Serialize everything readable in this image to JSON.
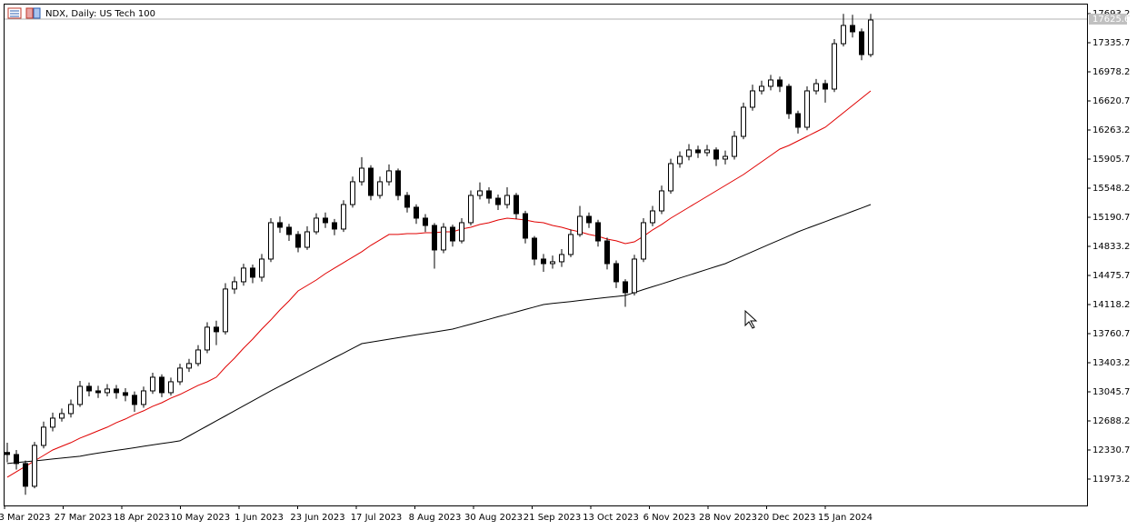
{
  "chart_data": {
    "type": "candlestick",
    "title": "NDX, Daily:  US Tech 100",
    "open": [
      12300,
      12275,
      12164,
      11885,
      12387,
      12611,
      12722,
      12778,
      12890,
      13113,
      13057,
      13035,
      13080,
      13035,
      13002,
      12890,
      13057,
      13225,
      13035,
      13169,
      13337,
      13393,
      13560,
      13840,
      13784,
      14309,
      14398,
      14566,
      14454,
      14677,
      15124,
      15068,
      14979,
      14822,
      15012,
      15180,
      15124,
      15046,
      15347,
      15627,
      15794,
      15459,
      15627,
      15761,
      15459,
      15314,
      15180,
      15090,
      14789,
      15068,
      14900,
      15124,
      15459,
      15515,
      15425,
      15347,
      15459,
      15235,
      14934,
      14677,
      14621,
      14644,
      14733,
      14979,
      15202,
      15124,
      14900,
      14621,
      14398,
      14264,
      14677,
      15124,
      15269,
      15515,
      15850,
      15939,
      16018,
      15984,
      16018,
      15906,
      15939,
      16185,
      16543,
      16744,
      16800,
      16878,
      16800,
      16464,
      16297,
      16744,
      16833,
      16766,
      17324,
      17548,
      17470,
      17190
    ],
    "high": [
      12420,
      12330,
      12200,
      12430,
      12680,
      12790,
      12840,
      12950,
      13180,
      13160,
      13120,
      13140,
      13130,
      13090,
      13050,
      13110,
      13280,
      13260,
      13220,
      13390,
      13450,
      13620,
      13900,
      13920,
      14380,
      14460,
      14620,
      14610,
      14740,
      15180,
      15200,
      15110,
      15020,
      15080,
      15240,
      15250,
      15170,
      15400,
      15690,
      15930,
      15830,
      15690,
      15840,
      15790,
      15500,
      15350,
      15230,
      15120,
      15120,
      15100,
      15180,
      15520,
      15620,
      15560,
      15470,
      15560,
      15490,
      15270,
      14960,
      14740,
      14720,
      14800,
      15040,
      15330,
      15250,
      15160,
      14940,
      14660,
      14430,
      14730,
      15180,
      15330,
      15580,
      15910,
      16000,
      16090,
      16070,
      16080,
      16050,
      16010,
      16250,
      16600,
      16820,
      16870,
      16940,
      16920,
      16830,
      16500,
      16800,
      16890,
      16880,
      17380,
      17690,
      17680,
      17510,
      17690
    ],
    "low": [
      12180,
      12090,
      11780,
      11860,
      12350,
      12560,
      12680,
      12730,
      12860,
      12990,
      12970,
      12990,
      12960,
      12930,
      12800,
      12850,
      13020,
      12980,
      13000,
      13130,
      13290,
      13360,
      13520,
      13620,
      13750,
      14250,
      14350,
      14380,
      14400,
      14640,
      15000,
      14900,
      14760,
      14790,
      14980,
      15060,
      14970,
      15010,
      15310,
      15580,
      15400,
      15420,
      15580,
      15400,
      15250,
      15110,
      15010,
      14560,
      14750,
      14830,
      14870,
      15090,
      15410,
      15360,
      15280,
      15300,
      15170,
      14870,
      14600,
      14520,
      14560,
      14580,
      14700,
      14950,
      15060,
      14830,
      14550,
      14320,
      14090,
      14230,
      14640,
      15080,
      15230,
      15480,
      15800,
      15890,
      15920,
      15940,
      15820,
      15840,
      15900,
      16150,
      16500,
      16700,
      16750,
      16730,
      16400,
      16220,
      16260,
      16700,
      16600,
      16730,
      17290,
      17400,
      17120,
      17160
    ],
    "close": [
      12275,
      12164,
      11885,
      12387,
      12611,
      12722,
      12778,
      12890,
      13113,
      13057,
      13035,
      13080,
      13035,
      13002,
      12890,
      13057,
      13225,
      13035,
      13169,
      13337,
      13393,
      13560,
      13840,
      13784,
      14309,
      14398,
      14566,
      14454,
      14677,
      15124,
      15068,
      14979,
      14822,
      15012,
      15180,
      15124,
      15046,
      15347,
      15627,
      15794,
      15459,
      15627,
      15761,
      15459,
      15314,
      15180,
      15090,
      14789,
      15068,
      14900,
      15124,
      15459,
      15515,
      15425,
      15347,
      15459,
      15235,
      14934,
      14677,
      14621,
      14644,
      14733,
      14979,
      15202,
      15124,
      14900,
      14621,
      14398,
      14264,
      14677,
      15124,
      15269,
      15515,
      15850,
      15939,
      16018,
      15984,
      16018,
      15906,
      15939,
      16185,
      16543,
      16744,
      16800,
      16878,
      16800,
      16464,
      16297,
      16744,
      16833,
      16766,
      17324,
      17548,
      17470,
      17190,
      17615
    ],
    "lines": [
      {
        "color": "#e00000",
        "values": [
          11996,
          12063,
          12130,
          12197,
          12264,
          12331,
          12376,
          12421,
          12477,
          12521,
          12566,
          12611,
          12667,
          12711,
          12767,
          12812,
          12868,
          12912,
          12968,
          13013,
          13069,
          13125,
          13169,
          13225,
          13348,
          13459,
          13582,
          13694,
          13817,
          13929,
          14052,
          14163,
          14286,
          14353,
          14420,
          14498,
          14566,
          14633,
          14700,
          14767,
          14845,
          14912,
          14979,
          14979,
          14990,
          14990,
          15001,
          15001,
          15012,
          15012,
          15046,
          15068,
          15102,
          15124,
          15157,
          15180,
          15169,
          15157,
          15135,
          15124,
          15090,
          15068,
          15035,
          15012,
          14979,
          14957,
          14923,
          14901,
          14867,
          14889,
          14957,
          15035,
          15102,
          15180,
          15247,
          15314,
          15381,
          15448,
          15515,
          15582,
          15649,
          15716,
          15794,
          15872,
          15950,
          16029,
          16073,
          16129,
          16185,
          16241,
          16297,
          16386,
          16475,
          16565,
          16654,
          16744
        ]
      },
      {
        "color": "#000000",
        "values": [
          12164,
          12175,
          12186,
          12197,
          12208,
          12220,
          12231,
          12242,
          12253,
          12275,
          12292,
          12309,
          12326,
          12342,
          12359,
          12376,
          12393,
          12410,
          12426,
          12443,
          12504,
          12566,
          12627,
          12689,
          12750,
          12812,
          12873,
          12935,
          12996,
          13058,
          13116,
          13174,
          13232,
          13290,
          13348,
          13406,
          13464,
          13522,
          13580,
          13638,
          13656,
          13674,
          13692,
          13710,
          13728,
          13746,
          13763,
          13781,
          13799,
          13817,
          13847,
          13877,
          13907,
          13937,
          13968,
          13998,
          14028,
          14058,
          14088,
          14118,
          14131,
          14143,
          14155,
          14168,
          14181,
          14193,
          14206,
          14218,
          14230,
          14266,
          14302,
          14337,
          14372,
          14408,
          14444,
          14479,
          14515,
          14550,
          14586,
          14621,
          14670,
          14719,
          14768,
          14817,
          14866,
          14914,
          14963,
          15012,
          15054,
          15096,
          15137,
          15180,
          15221,
          15263,
          15305,
          15347
        ]
      }
    ],
    "ylim": [
      11649,
      17805
    ],
    "yticks": [
      17693.2,
      17335.7,
      16978.2,
      16620.7,
      16263.2,
      15905.7,
      15548.2,
      15190.7,
      14833.2,
      14475.7,
      14118.2,
      13760.7,
      13403.2,
      13045.7,
      12688.2,
      12330.7,
      11973.2
    ],
    "xtick_labels": [
      "3 Mar 2023",
      "27 Mar 2023",
      "18 Apr 2023",
      "10 May 2023",
      "1 Jun 2023",
      "23 Jun 2023",
      "17 Jul 2023",
      "8 Aug 2023",
      "30 Aug 2023",
      "21 Sep 2023",
      "13 Oct 2023",
      "6 Nov 2023",
      "28 Nov 2023",
      "20 Dec 2023",
      "15 Jan 2024"
    ],
    "last_price": 17625.6
  }
}
